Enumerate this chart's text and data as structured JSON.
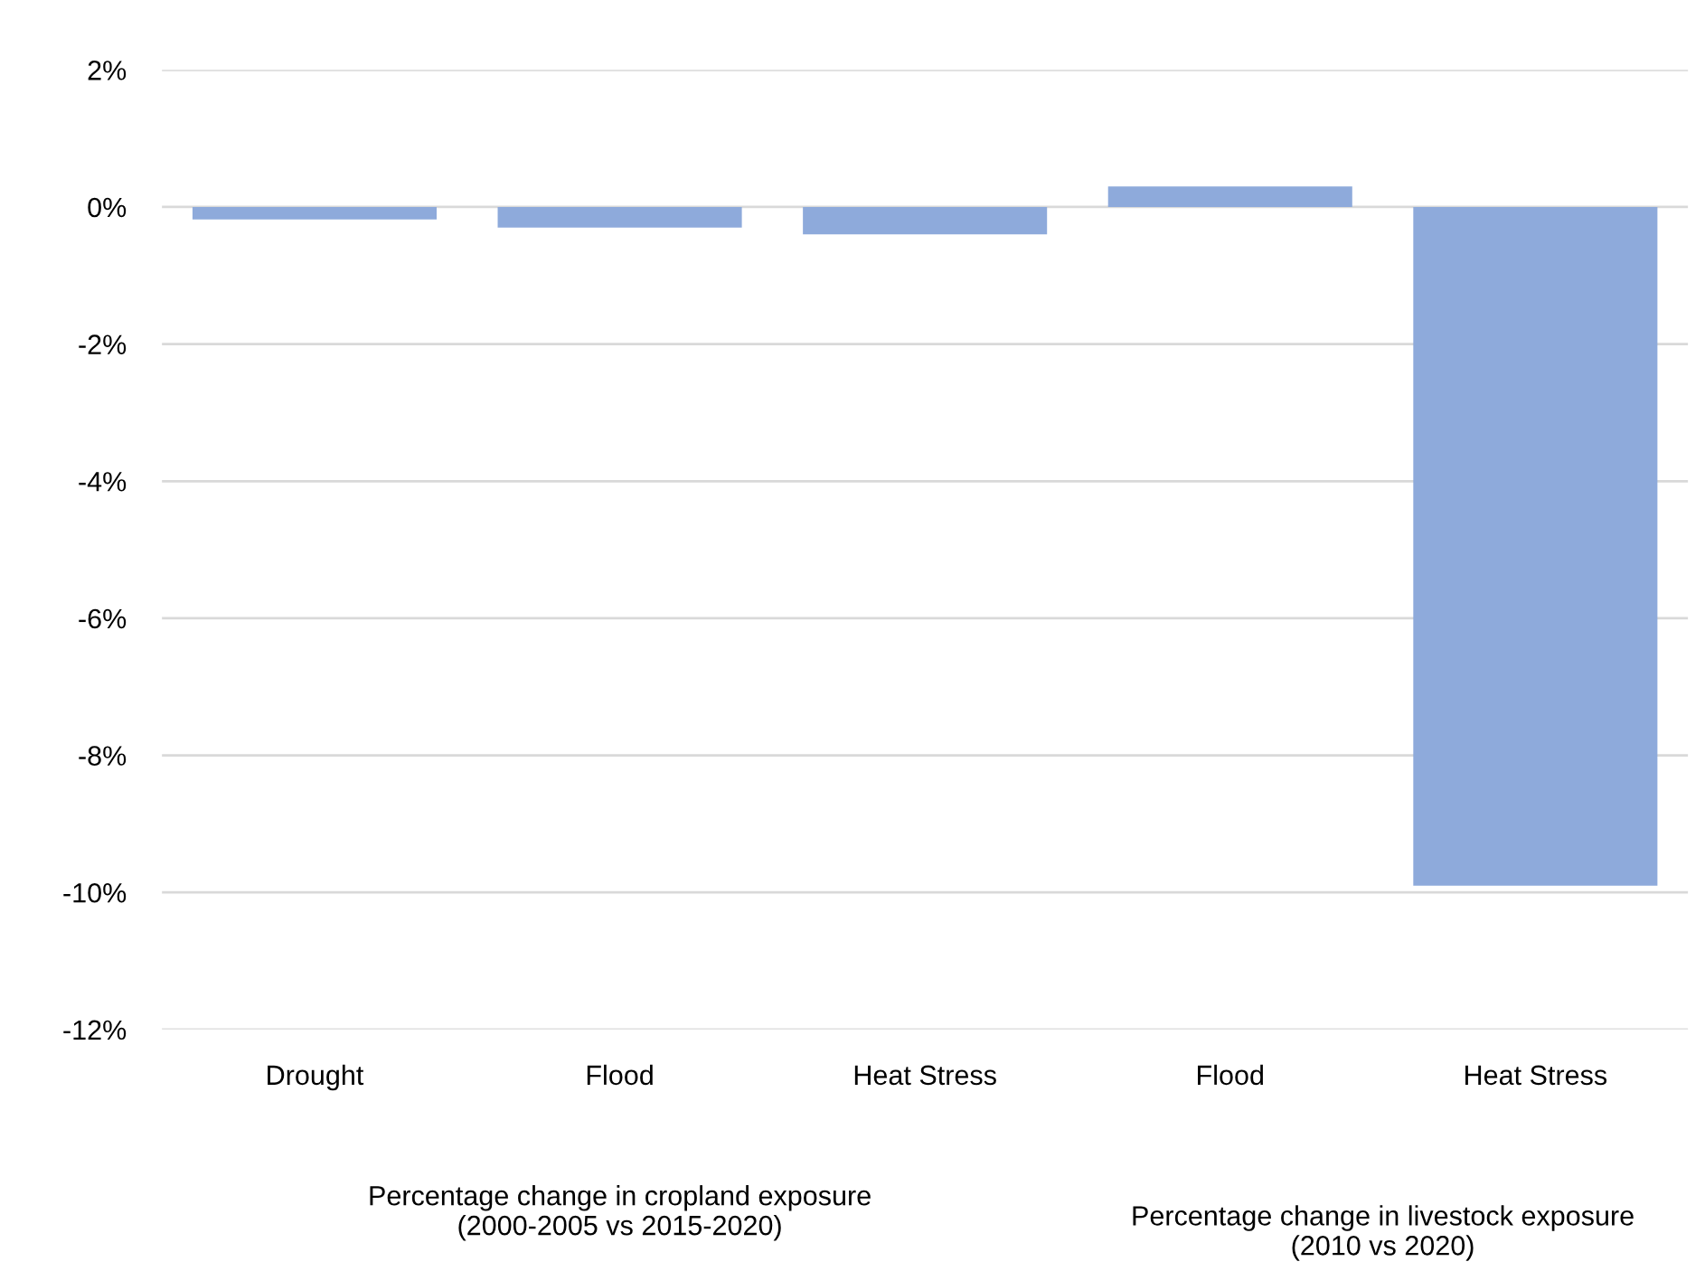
{
  "chart_data": {
    "type": "bar",
    "categories": [
      "Drought",
      "Flood",
      "Heat Stress",
      "Flood",
      "Heat Stress"
    ],
    "values": [
      -0.18,
      -0.3,
      -0.4,
      0.3,
      -9.9
    ],
    "color": "#8eaadb",
    "ylim": [
      -12,
      2
    ],
    "yticks": [
      {
        "value": 2,
        "label": "2%"
      },
      {
        "value": 0,
        "label": "0%"
      },
      {
        "value": -2,
        "label": "-2%"
      },
      {
        "value": -4,
        "label": "-4%"
      },
      {
        "value": -6,
        "label": "-6%"
      },
      {
        "value": -8,
        "label": "-8%"
      },
      {
        "value": -10,
        "label": "-10%"
      },
      {
        "value": -12,
        "label": "-12%"
      }
    ],
    "grid": "y",
    "annotations": [
      "Percentage change in cropland exposure\n(2000-2005 vs 2015-2020)",
      "Percentage change in livestock exposure\n(2010 vs 2020)"
    ]
  }
}
